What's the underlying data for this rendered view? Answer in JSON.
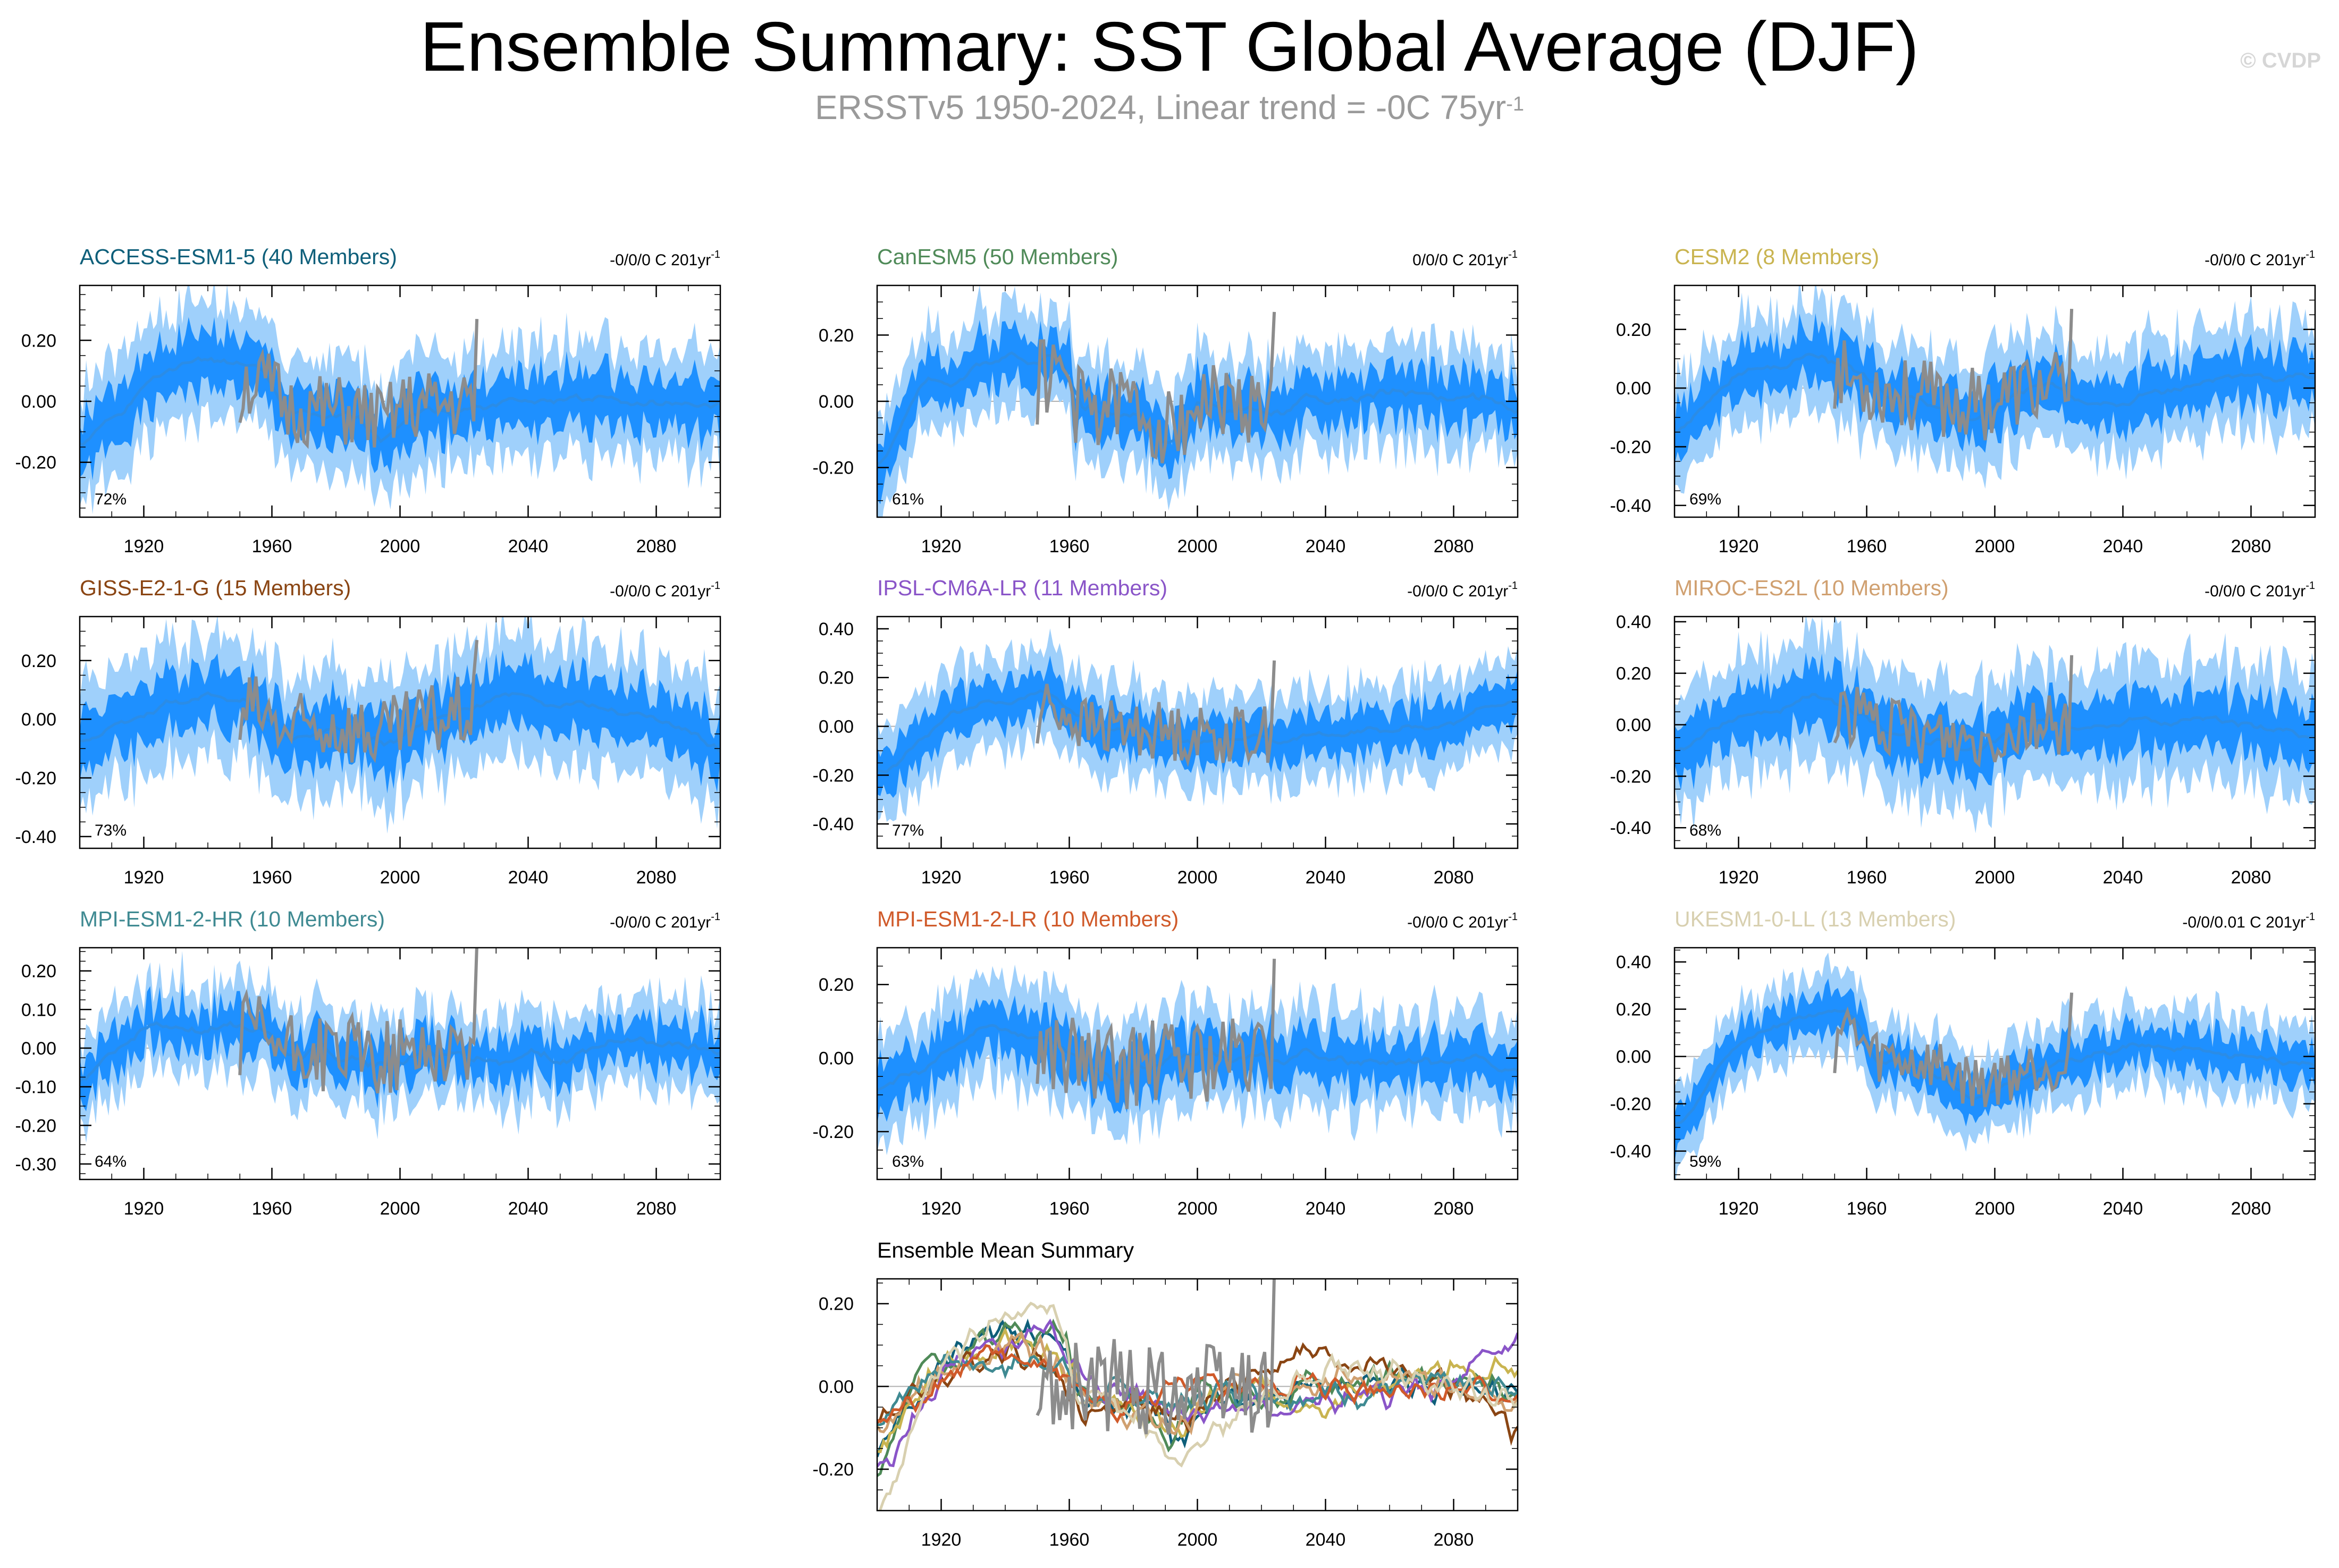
{
  "title": "Ensemble Summary: SST Global Average (DJF)",
  "subtitle": {
    "text": "ERSSTv5 1950-2024, Linear trend = -0C 75yr",
    "sup": "-1"
  },
  "watermark": "© CVDP",
  "colors": {
    "ensemble_mean": "#2b8ce6",
    "band_inner": "#1e90ff",
    "band_outer": "#9fd0fb",
    "observations": "#8c8c8c"
  },
  "chart_data": [
    {
      "type": "area",
      "title": "ACCESS-ESM1-5 (40 Members)",
      "title_color": "#0e5f7a",
      "trend_text": "-0/0/0 C 201yr",
      "trend_sup": "-1",
      "percent": "72%",
      "xlim": [
        1900,
        2100
      ],
      "ylim": [
        -0.38,
        0.38
      ],
      "yticks": [
        -0.2,
        0.0,
        0.2
      ],
      "xticks": [
        1920,
        1960,
        2000,
        2040,
        2080
      ],
      "key": [
        [
          1900,
          -0.17
        ],
        [
          1915,
          0.0
        ],
        [
          1930,
          0.12
        ],
        [
          1945,
          0.14
        ],
        [
          1960,
          0.07
        ],
        [
          1965,
          -0.05
        ],
        [
          1980,
          -0.06
        ],
        [
          1990,
          -0.08
        ],
        [
          1995,
          -0.13
        ],
        [
          2000,
          -0.04
        ],
        [
          2020,
          -0.02
        ],
        [
          2040,
          0.0
        ],
        [
          2060,
          0.01
        ],
        [
          2080,
          0.0
        ],
        [
          2100,
          -0.03
        ]
      ],
      "spread": 0.11,
      "obs_noise": 0.12,
      "seed": 1
    },
    {
      "type": "area",
      "title": "CanESM5 (50 Members)",
      "title_color": "#4f8a58",
      "trend_text": "0/0/0 C 201yr",
      "trend_sup": "-1",
      "percent": "61%",
      "xlim": [
        1900,
        2100
      ],
      "ylim": [
        -0.35,
        0.35
      ],
      "yticks": [
        -0.2,
        0.0,
        0.2
      ],
      "xticks": [
        1920,
        1960,
        2000,
        2040,
        2080
      ],
      "key": [
        [
          1900,
          -0.2
        ],
        [
          1915,
          0.05
        ],
        [
          1930,
          0.1
        ],
        [
          1945,
          0.15
        ],
        [
          1960,
          0.12
        ],
        [
          1962,
          -0.03
        ],
        [
          1980,
          -0.02
        ],
        [
          1992,
          -0.15
        ],
        [
          2000,
          0.0
        ],
        [
          2020,
          -0.03
        ],
        [
          2040,
          0.0
        ],
        [
          2060,
          0.02
        ],
        [
          2080,
          0.01
        ],
        [
          2100,
          -0.02
        ]
      ],
      "spread": 0.09,
      "obs_noise": 0.12,
      "seed": 2
    },
    {
      "type": "area",
      "title": "CESM2 (8 Members)",
      "title_color": "#c9b450",
      "trend_text": "-0/0/0 C 201yr",
      "trend_sup": "-1",
      "percent": "69%",
      "xlim": [
        1900,
        2100
      ],
      "ylim": [
        -0.44,
        0.35
      ],
      "yticks": [
        -0.4,
        -0.2,
        0.0,
        0.2
      ],
      "xticks": [
        1920,
        1960,
        2000,
        2040,
        2080
      ],
      "key": [
        [
          1900,
          -0.17
        ],
        [
          1920,
          0.05
        ],
        [
          1945,
          0.12
        ],
        [
          1960,
          0.02
        ],
        [
          1975,
          -0.05
        ],
        [
          1995,
          -0.1
        ],
        [
          2010,
          0.0
        ],
        [
          2040,
          -0.03
        ],
        [
          2070,
          0.02
        ],
        [
          2100,
          0.05
        ]
      ],
      "spread": 0.11,
      "obs_noise": 0.13,
      "seed": 3
    },
    {
      "type": "area",
      "title": "GISS-E2-1-G (15 Members)",
      "title_color": "#8a4513",
      "trend_text": "-0/0/0 C 201yr",
      "trend_sup": "-1",
      "percent": "73%",
      "xlim": [
        1900,
        2100
      ],
      "ylim": [
        -0.44,
        0.35
      ],
      "yticks": [
        -0.4,
        -0.2,
        0.0,
        0.2
      ],
      "xticks": [
        1920,
        1960,
        2000,
        2040,
        2080
      ],
      "key": [
        [
          1900,
          -0.08
        ],
        [
          1920,
          0.02
        ],
        [
          1940,
          0.1
        ],
        [
          1955,
          0.05
        ],
        [
          1965,
          -0.08
        ],
        [
          1980,
          -0.02
        ],
        [
          1995,
          -0.1
        ],
        [
          2010,
          0.0
        ],
        [
          2030,
          0.08
        ],
        [
          2060,
          0.05
        ],
        [
          2080,
          0.0
        ],
        [
          2100,
          -0.1
        ]
      ],
      "spread": 0.12,
      "obs_noise": 0.13,
      "seed": 4
    },
    {
      "type": "area",
      "title": "IPSL-CM6A-LR (11 Members)",
      "title_color": "#8a55c8",
      "trend_text": "-0/0/0 C 201yr",
      "trend_sup": "-1",
      "percent": "77%",
      "xlim": [
        1900,
        2100
      ],
      "ylim": [
        -0.5,
        0.45
      ],
      "yticks": [
        -0.4,
        -0.2,
        0.0,
        0.2,
        0.4
      ],
      "xticks": [
        1920,
        1960,
        2000,
        2040,
        2080
      ],
      "key": [
        [
          1900,
          -0.22
        ],
        [
          1920,
          0.02
        ],
        [
          1940,
          0.1
        ],
        [
          1955,
          0.15
        ],
        [
          1965,
          0.0
        ],
        [
          1985,
          -0.02
        ],
        [
          2000,
          -0.06
        ],
        [
          2040,
          -0.04
        ],
        [
          2080,
          0.0
        ],
        [
          2100,
          0.12
        ]
      ],
      "spread": 0.11,
      "obs_noise": 0.12,
      "seed": 5
    },
    {
      "type": "area",
      "title": "MIROC-ES2L (10 Members)",
      "title_color": "#d0a070",
      "trend_text": "-0/0/0 C 201yr",
      "trend_sup": "-1",
      "percent": "68%",
      "xlim": [
        1900,
        2100
      ],
      "ylim": [
        -0.48,
        0.42
      ],
      "yticks": [
        -0.4,
        -0.2,
        0.0,
        0.2,
        0.4
      ],
      "xticks": [
        1920,
        1960,
        2000,
        2040,
        2080
      ],
      "key": [
        [
          1900,
          -0.1
        ],
        [
          1920,
          0.02
        ],
        [
          1945,
          0.12
        ],
        [
          1960,
          0.05
        ],
        [
          1970,
          -0.05
        ],
        [
          1995,
          -0.1
        ],
        [
          2010,
          0.0
        ],
        [
          2040,
          0.02
        ],
        [
          2080,
          0.0
        ],
        [
          2100,
          -0.05
        ]
      ],
      "spread": 0.14,
      "obs_noise": 0.12,
      "seed": 6
    },
    {
      "type": "area",
      "title": "MPI-ESM1-2-HR (10 Members)",
      "title_color": "#3f8a92",
      "trend_text": "-0/0/0 C 201yr",
      "trend_sup": "-1",
      "percent": "64%",
      "xlim": [
        1900,
        2100
      ],
      "ylim": [
        -0.34,
        0.26
      ],
      "yticks": [
        -0.3,
        -0.2,
        -0.1,
        0.0,
        0.1,
        0.2
      ],
      "xticks": [
        1920,
        1960,
        2000,
        2040,
        2080
      ],
      "key": [
        [
          1900,
          -0.08
        ],
        [
          1920,
          0.06
        ],
        [
          1940,
          0.05
        ],
        [
          1955,
          0.07
        ],
        [
          1965,
          -0.02
        ],
        [
          1985,
          -0.02
        ],
        [
          1995,
          -0.05
        ],
        [
          2010,
          0.0
        ],
        [
          2040,
          -0.02
        ],
        [
          2070,
          0.0
        ],
        [
          2100,
          0.0
        ]
      ],
      "spread": 0.07,
      "obs_noise": 0.1,
      "seed": 7
    },
    {
      "type": "area",
      "title": "MPI-ESM1-2-LR (10 Members)",
      "title_color": "#d05a2a",
      "trend_text": "-0/0/0 C 201yr",
      "trend_sup": "-1",
      "percent": "63%",
      "xlim": [
        1900,
        2100
      ],
      "ylim": [
        -0.33,
        0.3
      ],
      "yticks": [
        -0.2,
        0.0,
        0.2
      ],
      "xticks": [
        1920,
        1960,
        2000,
        2040,
        2080
      ],
      "key": [
        [
          1900,
          -0.1
        ],
        [
          1920,
          0.02
        ],
        [
          1940,
          0.08
        ],
        [
          1960,
          0.02
        ],
        [
          1970,
          -0.05
        ],
        [
          1990,
          -0.02
        ],
        [
          2010,
          0.0
        ],
        [
          2040,
          0.0
        ],
        [
          2070,
          0.0
        ],
        [
          2100,
          -0.02
        ]
      ],
      "spread": 0.08,
      "obs_noise": 0.12,
      "seed": 8
    },
    {
      "type": "area",
      "title": "UKESM1-0-LL (13 Members)",
      "title_color": "#d8d0b0",
      "trend_text": "-0/0/0.01 C 201yr",
      "trend_sup": "-1",
      "percent": "59%",
      "xlim": [
        1900,
        2100
      ],
      "ylim": [
        -0.52,
        0.46
      ],
      "yticks": [
        -0.4,
        -0.2,
        0.0,
        0.2,
        0.4
      ],
      "xticks": [
        1920,
        1960,
        2000,
        2040,
        2080
      ],
      "key": [
        [
          1900,
          -0.32
        ],
        [
          1920,
          0.05
        ],
        [
          1940,
          0.18
        ],
        [
          1955,
          0.2
        ],
        [
          1962,
          0.0
        ],
        [
          1980,
          -0.05
        ],
        [
          1995,
          -0.2
        ],
        [
          2010,
          -0.08
        ],
        [
          2030,
          0.02
        ],
        [
          2050,
          0.05
        ],
        [
          2080,
          0.0
        ],
        [
          2100,
          -0.05
        ]
      ],
      "spread": 0.1,
      "obs_noise": 0.12,
      "seed": 9
    },
    {
      "type": "line",
      "title": "Ensemble Mean Summary",
      "title_color": "#000000",
      "trend_text": "",
      "trend_sup": "",
      "percent": "",
      "xlim": [
        1900,
        2100
      ],
      "ylim": [
        -0.3,
        0.26
      ],
      "yticks": [
        -0.2,
        0.0,
        0.2
      ],
      "xticks": [
        1920,
        1960,
        2000,
        2040,
        2080
      ],
      "series": [
        {
          "color": "#0e5f7a",
          "from": 0
        },
        {
          "color": "#4f8a58",
          "from": 1
        },
        {
          "color": "#c9b450",
          "from": 2
        },
        {
          "color": "#8a4513",
          "from": 3
        },
        {
          "color": "#8a55c8",
          "from": 4
        },
        {
          "color": "#d0a070",
          "from": 5
        },
        {
          "color": "#3f8a92",
          "from": 6
        },
        {
          "color": "#d05a2a",
          "from": 7
        },
        {
          "color": "#d8d0b0",
          "from": 8
        }
      ],
      "obs_noise": 0.12,
      "seed": 10
    }
  ]
}
